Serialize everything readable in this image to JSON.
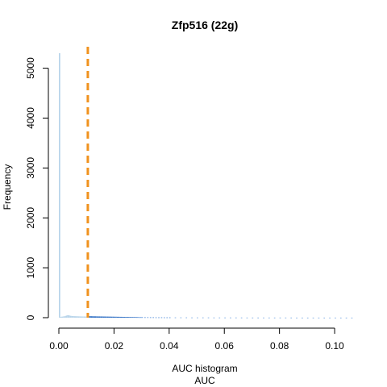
{
  "chart_data": {
    "type": "bar",
    "title": "Zfp516 (22g)",
    "xlabel_line1": "AUC histogram",
    "xlabel_line2": "AUC",
    "ylabel": "Frequency",
    "xlim": [
      0,
      0.107
    ],
    "ylim": [
      0,
      5300
    ],
    "x_ticks": [
      0.0,
      0.02,
      0.04,
      0.06,
      0.08,
      0.1
    ],
    "x_tick_labels": [
      "0.00",
      "0.02",
      "0.04",
      "0.06",
      "0.08",
      "0.10"
    ],
    "y_ticks": [
      0,
      1000,
      2000,
      3000,
      4000,
      5000
    ],
    "y_tick_labels": [
      "0",
      "1000",
      "2000",
      "3000",
      "4000",
      "5000"
    ],
    "threshold": 0.0105,
    "bin_width": 0.0005,
    "bins": [
      {
        "x": 0.0,
        "y": 5300,
        "color": "#b8d4ea"
      },
      {
        "x": 0.0005,
        "y": 18,
        "color": "#b8d4ea"
      },
      {
        "x": 0.001,
        "y": 22,
        "color": "#b8d4ea"
      },
      {
        "x": 0.0015,
        "y": 26,
        "color": "#b8d4ea"
      },
      {
        "x": 0.002,
        "y": 30,
        "color": "#b8d4ea"
      },
      {
        "x": 0.0025,
        "y": 42,
        "color": "#b8d4ea"
      },
      {
        "x": 0.003,
        "y": 50,
        "color": "#b8d4ea"
      },
      {
        "x": 0.0035,
        "y": 45,
        "color": "#b8d4ea"
      },
      {
        "x": 0.004,
        "y": 38,
        "color": "#b8d4ea"
      },
      {
        "x": 0.0045,
        "y": 34,
        "color": "#b8d4ea"
      },
      {
        "x": 0.005,
        "y": 32,
        "color": "#b8d4ea"
      },
      {
        "x": 0.0055,
        "y": 30,
        "color": "#b8d4ea"
      },
      {
        "x": 0.006,
        "y": 29,
        "color": "#b8d4ea"
      },
      {
        "x": 0.0065,
        "y": 28,
        "color": "#b8d4ea"
      },
      {
        "x": 0.007,
        "y": 27,
        "color": "#b8d4ea"
      },
      {
        "x": 0.0075,
        "y": 26,
        "color": "#b8d4ea"
      },
      {
        "x": 0.008,
        "y": 25,
        "color": "#b8d4ea"
      },
      {
        "x": 0.0085,
        "y": 24,
        "color": "#b8d4ea"
      },
      {
        "x": 0.009,
        "y": 24,
        "color": "#b8d4ea"
      },
      {
        "x": 0.0095,
        "y": 23,
        "color": "#b8d4ea"
      },
      {
        "x": 0.01,
        "y": 23,
        "color": "#b8d4ea"
      },
      {
        "x": 0.0105,
        "y": 28,
        "color": "#2f6fc4"
      },
      {
        "x": 0.011,
        "y": 30,
        "color": "#2f6fc4"
      },
      {
        "x": 0.0115,
        "y": 29,
        "color": "#2f6fc4"
      },
      {
        "x": 0.012,
        "y": 28,
        "color": "#2f6fc4"
      },
      {
        "x": 0.0125,
        "y": 27,
        "color": "#2f6fc4"
      },
      {
        "x": 0.013,
        "y": 27,
        "color": "#2f6fc4"
      },
      {
        "x": 0.0135,
        "y": 26,
        "color": "#2f6fc4"
      },
      {
        "x": 0.014,
        "y": 25,
        "color": "#2f6fc4"
      },
      {
        "x": 0.0145,
        "y": 25,
        "color": "#2f6fc4"
      },
      {
        "x": 0.015,
        "y": 24,
        "color": "#2f6fc4"
      },
      {
        "x": 0.0155,
        "y": 24,
        "color": "#2f6fc4"
      },
      {
        "x": 0.016,
        "y": 23,
        "color": "#2f6fc4"
      },
      {
        "x": 0.0165,
        "y": 23,
        "color": "#2f6fc4"
      },
      {
        "x": 0.017,
        "y": 22,
        "color": "#2f6fc4"
      },
      {
        "x": 0.0175,
        "y": 22,
        "color": "#2f6fc4"
      },
      {
        "x": 0.018,
        "y": 21,
        "color": "#2f6fc4"
      },
      {
        "x": 0.0185,
        "y": 21,
        "color": "#2f6fc4"
      },
      {
        "x": 0.019,
        "y": 20,
        "color": "#2f6fc4"
      },
      {
        "x": 0.0195,
        "y": 20,
        "color": "#2f6fc4"
      },
      {
        "x": 0.02,
        "y": 19,
        "color": "#2f6fc4"
      },
      {
        "x": 0.0205,
        "y": 19,
        "color": "#2f6fc4"
      },
      {
        "x": 0.021,
        "y": 18,
        "color": "#2f6fc4"
      },
      {
        "x": 0.0215,
        "y": 18,
        "color": "#2f6fc4"
      },
      {
        "x": 0.022,
        "y": 17,
        "color": "#2f6fc4"
      },
      {
        "x": 0.0225,
        "y": 17,
        "color": "#2f6fc4"
      },
      {
        "x": 0.023,
        "y": 16,
        "color": "#2f6fc4"
      },
      {
        "x": 0.0235,
        "y": 16,
        "color": "#2f6fc4"
      },
      {
        "x": 0.024,
        "y": 15,
        "color": "#2f6fc4"
      },
      {
        "x": 0.0245,
        "y": 15,
        "color": "#2f6fc4"
      },
      {
        "x": 0.025,
        "y": 14,
        "color": "#2f6fc4"
      },
      {
        "x": 0.0255,
        "y": 14,
        "color": "#2f6fc4"
      },
      {
        "x": 0.026,
        "y": 13,
        "color": "#2f6fc4"
      },
      {
        "x": 0.0265,
        "y": 13,
        "color": "#2f6fc4"
      },
      {
        "x": 0.027,
        "y": 12,
        "color": "#2f6fc4"
      },
      {
        "x": 0.0275,
        "y": 12,
        "color": "#2f6fc4"
      },
      {
        "x": 0.028,
        "y": 11,
        "color": "#2f6fc4"
      },
      {
        "x": 0.0285,
        "y": 11,
        "color": "#4a88d8"
      },
      {
        "x": 0.029,
        "y": 10,
        "color": "#4a88d8"
      },
      {
        "x": 0.0295,
        "y": 10,
        "color": "#4a88d8"
      },
      {
        "x": 0.03,
        "y": 10,
        "color": "#4a88d8"
      },
      {
        "x": 0.031,
        "y": 9,
        "color": "#4a88d8"
      },
      {
        "x": 0.032,
        "y": 9,
        "color": "#4a88d8"
      },
      {
        "x": 0.033,
        "y": 8,
        "color": "#4a88d8"
      },
      {
        "x": 0.034,
        "y": 8,
        "color": "#4a88d8"
      },
      {
        "x": 0.035,
        "y": 7,
        "color": "#4a88d8"
      },
      {
        "x": 0.036,
        "y": 7,
        "color": "#4a88d8"
      },
      {
        "x": 0.037,
        "y": 7,
        "color": "#4a88d8"
      },
      {
        "x": 0.038,
        "y": 6,
        "color": "#4a88d8"
      },
      {
        "x": 0.039,
        "y": 6,
        "color": "#4a88d8"
      },
      {
        "x": 0.04,
        "y": 6,
        "color": "#4a88d8"
      },
      {
        "x": 0.042,
        "y": 5,
        "color": "#6a9fe0"
      },
      {
        "x": 0.044,
        "y": 5,
        "color": "#6a9fe0"
      },
      {
        "x": 0.046,
        "y": 5,
        "color": "#6a9fe0"
      },
      {
        "x": 0.048,
        "y": 4,
        "color": "#6a9fe0"
      },
      {
        "x": 0.05,
        "y": 4,
        "color": "#6a9fe0"
      },
      {
        "x": 0.052,
        "y": 4,
        "color": "#6a9fe0"
      },
      {
        "x": 0.054,
        "y": 4,
        "color": "#6a9fe0"
      },
      {
        "x": 0.056,
        "y": 3,
        "color": "#6a9fe0"
      },
      {
        "x": 0.058,
        "y": 3,
        "color": "#6a9fe0"
      },
      {
        "x": 0.06,
        "y": 3,
        "color": "#6a9fe0"
      },
      {
        "x": 0.062,
        "y": 3,
        "color": "#6a9fe0"
      },
      {
        "x": 0.064,
        "y": 3,
        "color": "#6a9fe0"
      },
      {
        "x": 0.066,
        "y": 3,
        "color": "#6a9fe0"
      },
      {
        "x": 0.068,
        "y": 2,
        "color": "#6a9fe0"
      },
      {
        "x": 0.07,
        "y": 2,
        "color": "#6a9fe0"
      },
      {
        "x": 0.072,
        "y": 2,
        "color": "#6a9fe0"
      },
      {
        "x": 0.074,
        "y": 2,
        "color": "#6a9fe0"
      },
      {
        "x": 0.076,
        "y": 2,
        "color": "#6a9fe0"
      },
      {
        "x": 0.078,
        "y": 2,
        "color": "#6a9fe0"
      },
      {
        "x": 0.08,
        "y": 2,
        "color": "#6a9fe0"
      },
      {
        "x": 0.082,
        "y": 2,
        "color": "#6a9fe0"
      },
      {
        "x": 0.084,
        "y": 2,
        "color": "#6a9fe0"
      },
      {
        "x": 0.086,
        "y": 1,
        "color": "#6a9fe0"
      },
      {
        "x": 0.088,
        "y": 1,
        "color": "#6a9fe0"
      },
      {
        "x": 0.09,
        "y": 1,
        "color": "#6a9fe0"
      },
      {
        "x": 0.092,
        "y": 1,
        "color": "#6a9fe0"
      },
      {
        "x": 0.094,
        "y": 1,
        "color": "#6a9fe0"
      },
      {
        "x": 0.096,
        "y": 1,
        "color": "#6a9fe0"
      },
      {
        "x": 0.098,
        "y": 1,
        "color": "#6a9fe0"
      },
      {
        "x": 0.1,
        "y": 1,
        "color": "#6a9fe0"
      },
      {
        "x": 0.102,
        "y": 1,
        "color": "#6a9fe0"
      },
      {
        "x": 0.104,
        "y": 1,
        "color": "#6a9fe0"
      },
      {
        "x": 0.106,
        "y": 1,
        "color": "#6a9fe0"
      }
    ],
    "colors": {
      "low_bins": "#b8d4ea",
      "high_bins": "#2f6fc4",
      "threshold_line": "#f0921e",
      "axis": "#000000"
    },
    "grid": false,
    "legend": "none"
  }
}
